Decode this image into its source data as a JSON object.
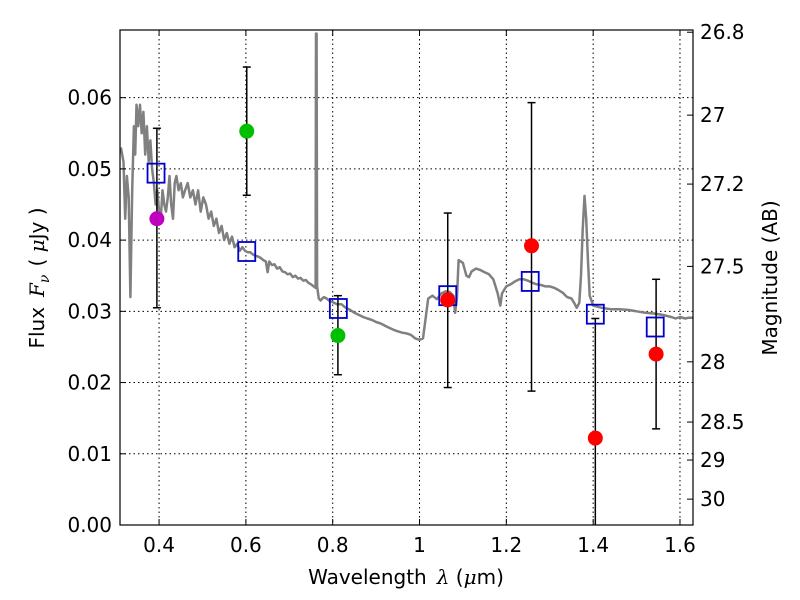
{
  "chart_data": {
    "type": "scatter",
    "x_range": [
      0.31,
      1.63
    ],
    "y_range": [
      0.0,
      0.0695
    ],
    "grid": true,
    "x_ticks": [
      0.4,
      0.6,
      0.8,
      1.0,
      1.2,
      1.4,
      1.6
    ],
    "x_tick_labels": [
      "0.4",
      "0.6",
      "0.8",
      "1",
      "1.2",
      "1.4",
      "1.6"
    ],
    "y_ticks": [
      0.0,
      0.01,
      0.02,
      0.03,
      0.04,
      0.05,
      0.06
    ],
    "y_tick_labels": [
      "0.00",
      "0.01",
      "0.02",
      "0.03",
      "0.04",
      "0.05",
      "0.06"
    ],
    "right_axis": {
      "label": "Magnitude (AB)",
      "ticks": [
        {
          "mag": 26.8,
          "label": "26.8"
        },
        {
          "mag": 27.0,
          "label": "27"
        },
        {
          "mag": 27.2,
          "label": "27.2"
        },
        {
          "mag": 27.5,
          "label": "27.5"
        },
        {
          "mag": 28.0,
          "label": "28"
        },
        {
          "mag": 28.5,
          "label": "28.5"
        },
        {
          "mag": 29.0,
          "label": "29"
        },
        {
          "mag": 30.0,
          "label": "30"
        }
      ]
    },
    "xlabel": {
      "text": "Wavelength",
      "sym": "λ",
      "unit_open": " (",
      "unit_mu": "μ",
      "unit_rest": "m)"
    },
    "ylabel": {
      "text": "Flux",
      "sym": "F",
      "sub": "ν",
      "unit_open": "( ",
      "unit_mu": "μ",
      "unit_rest": "Jy )"
    },
    "series": [
      {
        "name": "model spectrum",
        "kind": "line",
        "color": "#808080",
        "points": [
          [
            0.312,
            0.053
          ],
          [
            0.318,
            0.051
          ],
          [
            0.322,
            0.043
          ],
          [
            0.326,
            0.049
          ],
          [
            0.33,
            0.046
          ],
          [
            0.334,
            0.032
          ],
          [
            0.338,
            0.047
          ],
          [
            0.342,
            0.056
          ],
          [
            0.345,
            0.052
          ],
          [
            0.348,
            0.059
          ],
          [
            0.352,
            0.056
          ],
          [
            0.356,
            0.059
          ],
          [
            0.36,
            0.055
          ],
          [
            0.364,
            0.058
          ],
          [
            0.368,
            0.052
          ],
          [
            0.372,
            0.056
          ],
          [
            0.376,
            0.051
          ],
          [
            0.38,
            0.054
          ],
          [
            0.384,
            0.05
          ],
          [
            0.388,
            0.048
          ],
          [
            0.392,
            0.045
          ],
          [
            0.396,
            0.047
          ],
          [
            0.4,
            0.044
          ],
          [
            0.404,
            0.043
          ],
          [
            0.408,
            0.047
          ],
          [
            0.412,
            0.045
          ],
          [
            0.416,
            0.044
          ],
          [
            0.42,
            0.046
          ],
          [
            0.424,
            0.049
          ],
          [
            0.428,
            0.045
          ],
          [
            0.432,
            0.043
          ],
          [
            0.436,
            0.048
          ],
          [
            0.44,
            0.049
          ],
          [
            0.445,
            0.047
          ],
          [
            0.45,
            0.048
          ],
          [
            0.455,
            0.046
          ],
          [
            0.46,
            0.047
          ],
          [
            0.466,
            0.048
          ],
          [
            0.472,
            0.046
          ],
          [
            0.478,
            0.047
          ],
          [
            0.484,
            0.045
          ],
          [
            0.49,
            0.047
          ],
          [
            0.496,
            0.044
          ],
          [
            0.502,
            0.046
          ],
          [
            0.508,
            0.045
          ],
          [
            0.514,
            0.043
          ],
          [
            0.52,
            0.044
          ],
          [
            0.526,
            0.042
          ],
          [
            0.532,
            0.043
          ],
          [
            0.538,
            0.041
          ],
          [
            0.544,
            0.042
          ],
          [
            0.55,
            0.04
          ],
          [
            0.556,
            0.041
          ],
          [
            0.562,
            0.0395
          ],
          [
            0.568,
            0.0405
          ],
          [
            0.574,
            0.039
          ],
          [
            0.58,
            0.0395
          ],
          [
            0.586,
            0.0385
          ],
          [
            0.592,
            0.039
          ],
          [
            0.598,
            0.0385
          ],
          [
            0.604,
            0.0383
          ],
          [
            0.61,
            0.0383
          ],
          [
            0.616,
            0.038
          ],
          [
            0.622,
            0.0378
          ],
          [
            0.628,
            0.0377
          ],
          [
            0.634,
            0.0375
          ],
          [
            0.64,
            0.0372
          ],
          [
            0.646,
            0.037
          ],
          [
            0.65,
            0.0355
          ],
          [
            0.654,
            0.037
          ],
          [
            0.66,
            0.0365
          ],
          [
            0.666,
            0.0366
          ],
          [
            0.672,
            0.036
          ],
          [
            0.678,
            0.0362
          ],
          [
            0.684,
            0.0356
          ],
          [
            0.69,
            0.0355
          ],
          [
            0.696,
            0.0352
          ],
          [
            0.702,
            0.0353
          ],
          [
            0.708,
            0.0348
          ],
          [
            0.714,
            0.035
          ],
          [
            0.72,
            0.0346
          ],
          [
            0.726,
            0.0347
          ],
          [
            0.732,
            0.0343
          ],
          [
            0.738,
            0.0344
          ],
          [
            0.744,
            0.034
          ],
          [
            0.75,
            0.0338
          ],
          [
            0.756,
            0.0335
          ],
          [
            0.7605,
            0.0333
          ],
          [
            0.7615,
            0.069
          ],
          [
            0.763,
            0.069
          ],
          [
            0.764,
            0.0335
          ],
          [
            0.768,
            0.0318
          ],
          [
            0.772,
            0.0315
          ],
          [
            0.776,
            0.0318
          ],
          [
            0.78,
            0.032
          ],
          [
            0.786,
            0.0318
          ],
          [
            0.792,
            0.0315
          ],
          [
            0.8,
            0.0313
          ],
          [
            0.81,
            0.031
          ],
          [
            0.82,
            0.031
          ],
          [
            0.83,
            0.0305
          ],
          [
            0.84,
            0.0302
          ],
          [
            0.85,
            0.0298
          ],
          [
            0.86,
            0.0295
          ],
          [
            0.87,
            0.0292
          ],
          [
            0.88,
            0.029
          ],
          [
            0.89,
            0.0288
          ],
          [
            0.9,
            0.0285
          ],
          [
            0.91,
            0.0283
          ],
          [
            0.92,
            0.028
          ],
          [
            0.93,
            0.0277
          ],
          [
            0.94,
            0.0274
          ],
          [
            0.95,
            0.0272
          ],
          [
            0.96,
            0.027
          ],
          [
            0.97,
            0.0269
          ],
          [
            0.98,
            0.0267
          ],
          [
            0.99,
            0.0262
          ],
          [
            1.0,
            0.026
          ],
          [
            1.008,
            0.0262
          ],
          [
            1.014,
            0.029
          ],
          [
            1.02,
            0.0318
          ],
          [
            1.03,
            0.0322
          ],
          [
            1.04,
            0.0317
          ],
          [
            1.05,
            0.0325
          ],
          [
            1.06,
            0.0328
          ],
          [
            1.07,
            0.0327
          ],
          [
            1.078,
            0.0322
          ],
          [
            1.082,
            0.0298
          ],
          [
            1.086,
            0.0318
          ],
          [
            1.09,
            0.0372
          ],
          [
            1.1,
            0.0368
          ],
          [
            1.108,
            0.035
          ],
          [
            1.114,
            0.0348
          ],
          [
            1.12,
            0.0356
          ],
          [
            1.13,
            0.036
          ],
          [
            1.14,
            0.0358
          ],
          [
            1.15,
            0.0355
          ],
          [
            1.16,
            0.0352
          ],
          [
            1.17,
            0.0345
          ],
          [
            1.18,
            0.0325
          ],
          [
            1.186,
            0.0308
          ],
          [
            1.19,
            0.0325
          ],
          [
            1.2,
            0.0335
          ],
          [
            1.21,
            0.0338
          ],
          [
            1.22,
            0.0342
          ],
          [
            1.23,
            0.0345
          ],
          [
            1.24,
            0.0345
          ],
          [
            1.25,
            0.0343
          ],
          [
            1.26,
            0.034
          ],
          [
            1.27,
            0.0338
          ],
          [
            1.28,
            0.0337
          ],
          [
            1.29,
            0.0335
          ],
          [
            1.3,
            0.0335
          ],
          [
            1.31,
            0.0333
          ],
          [
            1.32,
            0.033
          ],
          [
            1.33,
            0.0326
          ],
          [
            1.34,
            0.032
          ],
          [
            1.35,
            0.0318
          ],
          [
            1.356,
            0.0312
          ],
          [
            1.362,
            0.0305
          ],
          [
            1.368,
            0.0312
          ],
          [
            1.372,
            0.035
          ],
          [
            1.376,
            0.0415
          ],
          [
            1.38,
            0.0462
          ],
          [
            1.384,
            0.043
          ],
          [
            1.388,
            0.037
          ],
          [
            1.392,
            0.0322
          ],
          [
            1.4,
            0.0308
          ],
          [
            1.42,
            0.0305
          ],
          [
            1.44,
            0.0303
          ],
          [
            1.46,
            0.0303
          ],
          [
            1.48,
            0.0302
          ],
          [
            1.5,
            0.03
          ],
          [
            1.52,
            0.0298
          ],
          [
            1.54,
            0.0297
          ],
          [
            1.56,
            0.0295
          ],
          [
            1.58,
            0.0292
          ],
          [
            1.59,
            0.029
          ],
          [
            1.6,
            0.0292
          ],
          [
            1.612,
            0.029
          ],
          [
            1.62,
            0.0291
          ],
          [
            1.63,
            0.0291
          ]
        ]
      },
      {
        "name": "model photometry",
        "kind": "open-square",
        "color": "#0000cc",
        "x": [
          0.393,
          0.602,
          0.813,
          1.065,
          1.255,
          1.405,
          1.543
        ],
        "y": [
          0.0494,
          0.0384,
          0.0304,
          0.0322,
          0.0342,
          0.0296,
          0.0278
        ]
      },
      {
        "name": "observed photometry",
        "kind": "filled-circle",
        "x": [
          0.395,
          0.602,
          0.812,
          1.065,
          1.258,
          1.405,
          1.545
        ],
        "y": [
          0.043,
          0.0553,
          0.0266,
          0.0316,
          0.0392,
          0.0122,
          0.024
        ],
        "colors": [
          "#bf00bf",
          "#00bf00",
          "#00bf00",
          "#ff0000",
          "#ff0000",
          "#ff0000",
          "#ff0000"
        ],
        "err_center": [
          0.0431,
          0.0553,
          0.0266,
          0.0316,
          0.0392,
          0.0145,
          0.024
        ],
        "err_low": [
          0.0305,
          0.0463,
          0.0211,
          0.0193,
          0.0188,
          0.0,
          0.0135
        ],
        "err_high": [
          0.0557,
          0.0643,
          0.0322,
          0.0438,
          0.0593,
          0.029,
          0.0345
        ]
      }
    ]
  }
}
